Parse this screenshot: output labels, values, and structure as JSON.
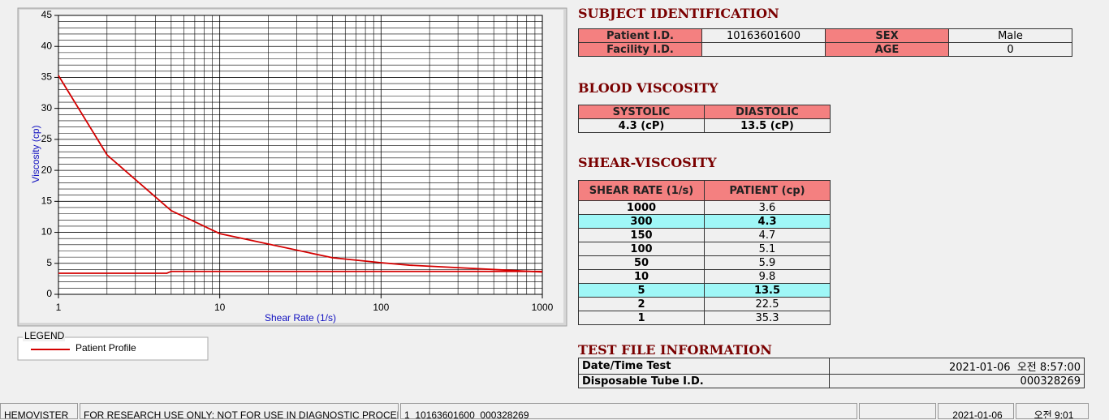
{
  "chart_data": {
    "type": "line",
    "xlabel": "Shear Rate (1/s)",
    "ylabel": "Viscosity (cp)",
    "xscale": "log",
    "xlim": [
      1,
      1000
    ],
    "xticks": [
      1,
      10,
      100,
      1000
    ],
    "ylim": [
      0,
      45
    ],
    "yticks": [
      0,
      5,
      10,
      15,
      20,
      25,
      30,
      35,
      40,
      45
    ],
    "grid": true,
    "legend_title": "LEGEND",
    "series": [
      {
        "name": "Patient Profile",
        "color": "#d40000",
        "x": [
          1,
          2,
          5,
          10,
          50,
          100,
          150,
          300,
          1000
        ],
        "values": [
          35.3,
          22.5,
          13.5,
          9.8,
          5.9,
          5.1,
          4.7,
          4.3,
          3.6
        ]
      },
      {
        "color": "#d40000",
        "x": [
          1,
          4.7,
          5,
          1000
        ],
        "values": [
          3.4,
          3.4,
          3.7,
          3.7
        ]
      }
    ]
  },
  "subject": {
    "title": "SUBJECT IDENTIFICATION",
    "rows": [
      [
        "Patient I.D.",
        "10163601600",
        "SEX",
        "Male"
      ],
      [
        "Facility I.D.",
        null,
        "AGE",
        "0"
      ]
    ]
  },
  "blood": {
    "title": "BLOOD VISCOSITY",
    "header": [
      "SYSTOLIC",
      "DIASTOLIC"
    ],
    "row": [
      "4.3 (cP)",
      "13.5 (cP)"
    ]
  },
  "shear": {
    "title": "SHEAR-VISCOSITY",
    "header": [
      "SHEAR RATE (1/s)",
      "PATIENT (cp)"
    ],
    "rows": [
      {
        "rate": 1000,
        "patient": 3.6
      },
      {
        "rate": 300,
        "patient": 4.3,
        "highlight": true
      },
      {
        "rate": 150,
        "patient": 4.7
      },
      {
        "rate": 100,
        "patient": 5.1
      },
      {
        "rate": 50,
        "patient": 5.9
      },
      {
        "rate": 10,
        "patient": 9.8
      },
      {
        "rate": 5,
        "patient": 13.5,
        "highlight": true
      },
      {
        "rate": 2,
        "patient": 22.5
      },
      {
        "rate": 1,
        "patient": 35.3
      }
    ]
  },
  "test_file": {
    "title": "TEST FILE INFORMATION",
    "rows": [
      [
        "Date/Time Test",
        "2021-01-06  오전 8:57:00"
      ],
      [
        "Disposable Tube I.D.",
        "000328269"
      ]
    ]
  },
  "status_bar": [
    "HEMOVISTER",
    "FOR RESEARCH USE ONLY: NOT FOR USE IN DIAGNOSTIC PROCEDURES",
    "1  10163601600  000328269",
    null,
    "2021-01-06",
    "오전 9:01"
  ]
}
